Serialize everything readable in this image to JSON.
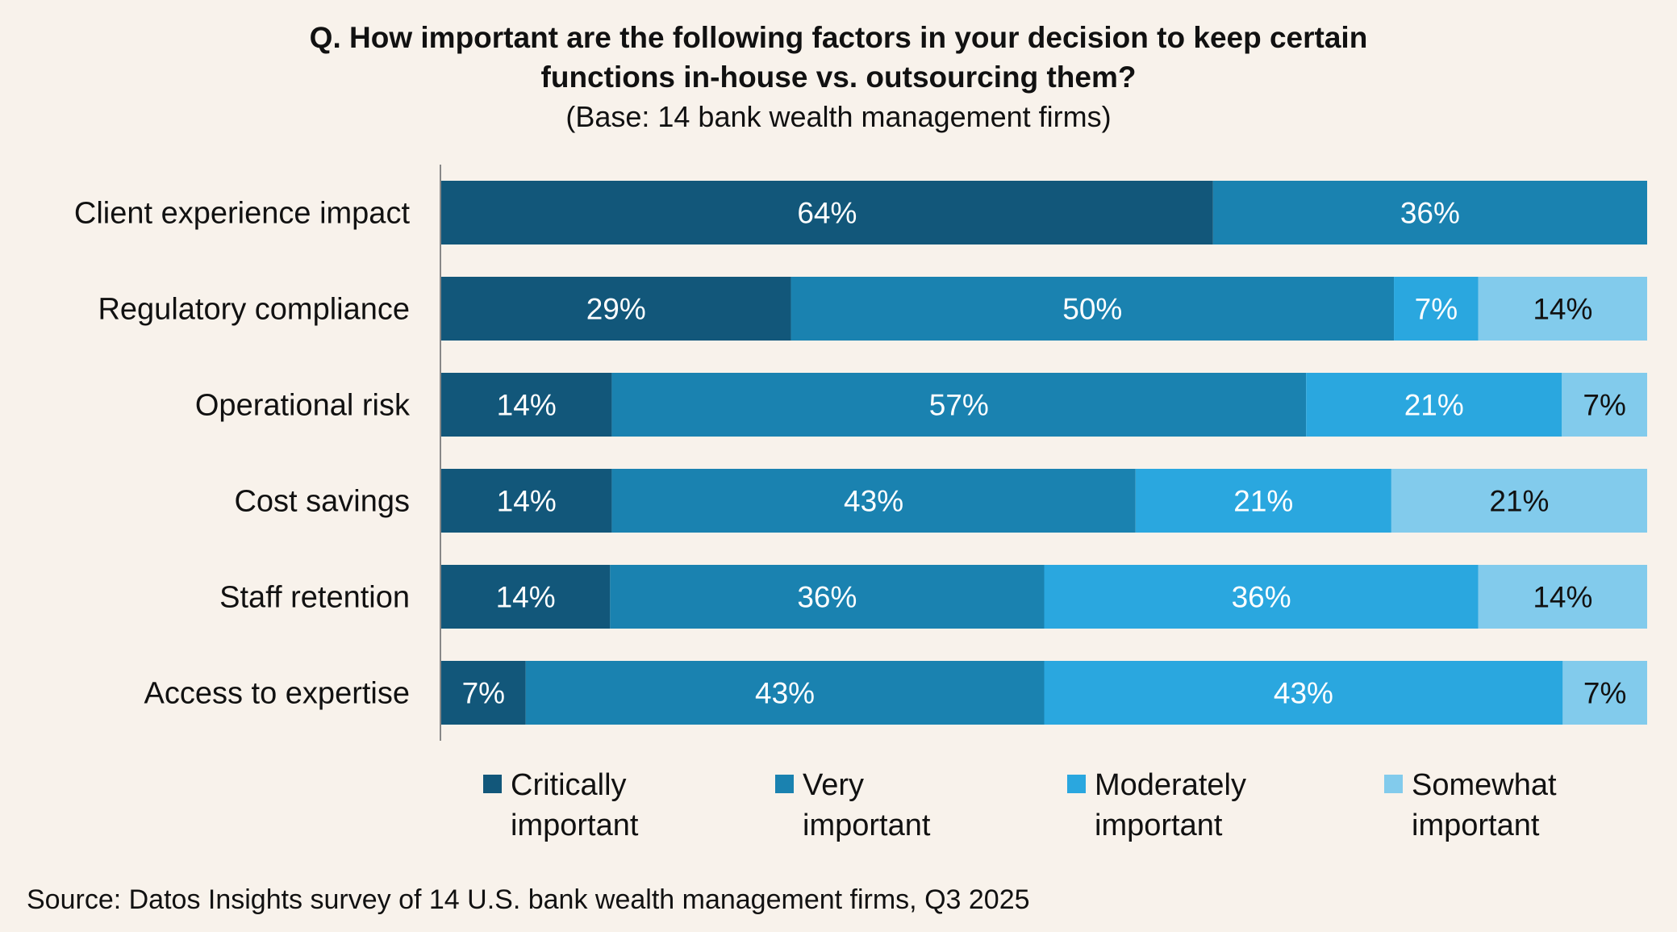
{
  "title_line1": "Q. How important are the following factors in your decision to keep certain",
  "title_line2": "functions in-house vs. outsourcing them?",
  "subtitle": "(Base: 14 bank wealth management firms)",
  "source": "Source: Datos Insights survey of 14 U.S. bank wealth management firms, Q3 2025",
  "chart_data": {
    "type": "bar",
    "orientation": "horizontal",
    "stacked": true,
    "title": "Q. How important are the following factors in your decision to keep certain functions in-house vs. outsourcing them?",
    "subtitle": "(Base: 14 bank wealth management firms)",
    "categories": [
      "Client experience impact",
      "Regulatory compliance",
      "Operational risk",
      "Cost savings",
      "Staff retention",
      "Access to expertise"
    ],
    "xlim": [
      0,
      100
    ],
    "grid": false,
    "legend_placement": "bottom",
    "series": [
      {
        "name": "Critically important",
        "color": "#12577a",
        "label_color": "#ffffff",
        "values": [
          64,
          29,
          14,
          14,
          14,
          7
        ]
      },
      {
        "name": "Very important",
        "color": "#1a82b0",
        "label_color": "#ffffff",
        "values": [
          36,
          50,
          57,
          43,
          36,
          43
        ]
      },
      {
        "name": "Moderately important",
        "color": "#2aa7df",
        "label_color": "#ffffff",
        "values": [
          0,
          7,
          21,
          21,
          36,
          43
        ]
      },
      {
        "name": "Somewhat important",
        "color": "#82cbec",
        "label_color": "#111111",
        "values": [
          0,
          14,
          7,
          21,
          14,
          7
        ]
      }
    ]
  },
  "legend": [
    {
      "line1": "Critically",
      "line2": "important"
    },
    {
      "line1": "Very",
      "line2": "important"
    },
    {
      "line1": "Moderately",
      "line2": "important"
    },
    {
      "line1": "Somewhat",
      "line2": "important"
    }
  ]
}
